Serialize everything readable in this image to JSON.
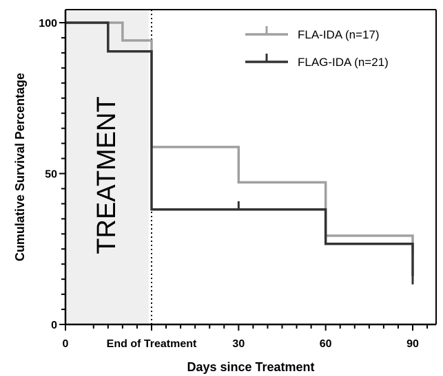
{
  "chart_data": {
    "type": "line",
    "step": true,
    "xlabel": "Days since Treatment",
    "ylabel": "Cumulative Survival Percentage",
    "xlim": [
      -25,
      95
    ],
    "ylim": [
      0,
      100
    ],
    "x_ticks": [
      {
        "value": 0,
        "label": "0"
      },
      {
        "value": 30,
        "label": "30"
      },
      {
        "value": 60,
        "label": "60"
      },
      {
        "value": 90,
        "label": "90"
      }
    ],
    "y_ticks": [
      {
        "value": 0,
        "label": "0"
      },
      {
        "value": 50,
        "label": "50"
      },
      {
        "value": 100,
        "label": "100"
      }
    ],
    "category_tick": {
      "value": 0,
      "label": "End of Treatment"
    },
    "shaded_region": {
      "x_start": -25,
      "x_end": -1,
      "label": "TREATMENT",
      "color": "#efefef"
    },
    "reference_line": {
      "x": 0,
      "style": "dotted"
    },
    "series": [
      {
        "name": "FLA-IDA (n=17)",
        "color": "#a0a0a0",
        "x": [
          -25,
          -10,
          0,
          30,
          60,
          90
        ],
        "y": [
          100,
          94.1,
          58.8,
          47.1,
          29.4,
          23.5
        ],
        "censored": [
          {
            "x": 90,
            "y": 23.5
          }
        ]
      },
      {
        "name": "FLAG-IDA (n=21)",
        "color": "#333333",
        "x": [
          -25,
          -15,
          0,
          60,
          90
        ],
        "y": [
          100,
          90.5,
          38.1,
          26.7,
          16.0
        ],
        "censored": [
          {
            "x": 30,
            "y": 38.1
          },
          {
            "x": 90,
            "y": 16.0
          }
        ]
      }
    ],
    "legend": {
      "position": "top-right"
    }
  }
}
